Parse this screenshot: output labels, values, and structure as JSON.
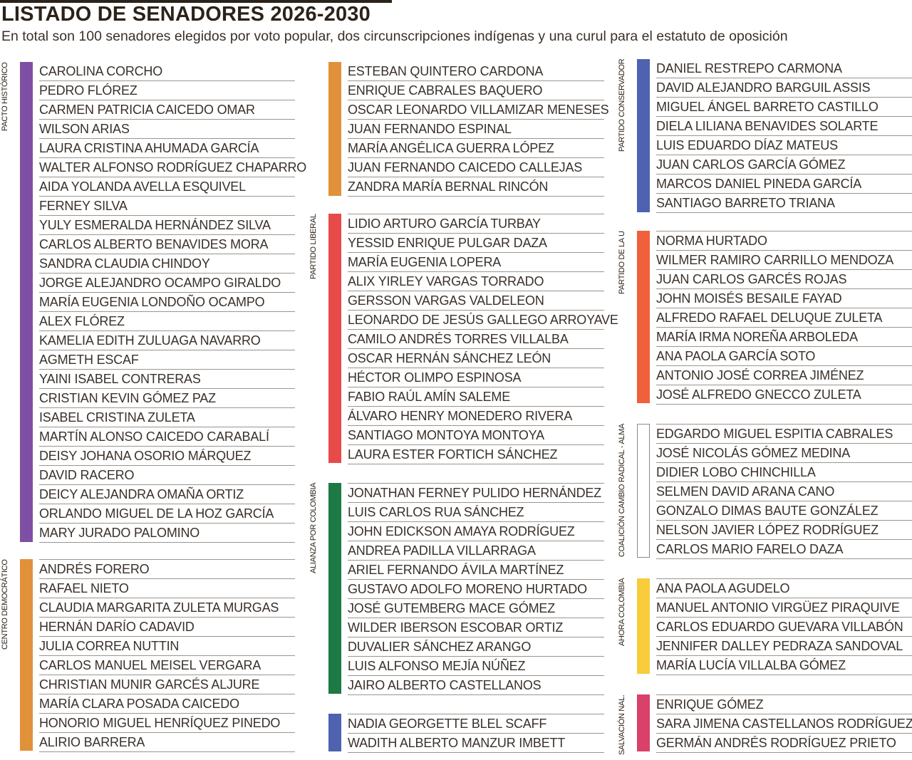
{
  "header": {
    "title": "LISTADO DE SENADORES  2026-2030",
    "subtitle": "En total son 100 senadores elegidos por voto popular, dos circunscripciones indígenas y una curul para el estatuto de oposición"
  },
  "parties": {
    "pacto_historico": {
      "label": "PACTO HISTÓRICO",
      "color": "#7f4fa3",
      "members": [
        "CAROLINA CORCHO",
        "PEDRO FLÓREZ",
        "CARMEN PATRICIA CAICEDO OMAR",
        "WILSON ARIAS",
        "LAURA CRISTINA AHUMADA GARCÍA",
        "WALTER ALFONSO RODRÍGUEZ CHAPARRO",
        "AIDA YOLANDA AVELLA ESQUIVEL",
        "FERNEY SILVA",
        "YULY ESMERALDA HERNÁNDEZ SILVA",
        "CARLOS ALBERTO BENAVIDES MORA",
        "SANDRA CLAUDIA CHINDOY",
        "JORGE ALEJANDRO OCAMPO GIRALDO",
        "MARÍA EUGENIA LONDOÑO OCAMPO",
        "ALEX FLÓREZ",
        "KAMELIA EDITH ZULUAGA NAVARRO",
        "AGMETH ESCAF",
        "YAINI ISABEL CONTRERAS",
        "CRISTIAN KEVIN GÓMEZ PAZ",
        "ISABEL CRISTINA ZULETA",
        "MARTÍN ALONSO CAICEDO CARABALÍ",
        "DEISY JOHANA OSORIO MÁRQUEZ",
        "DAVID RACERO",
        "DEICY ALEJANDRA OMAÑA ORTIZ",
        "ORLANDO MIGUEL DE LA HOZ GARCÍA",
        "MARY JURADO PALOMINO"
      ]
    },
    "centro_democratico": {
      "label": "CENTRO DEMOCRÁTICO",
      "color": "#e0913a",
      "members": [
        "ANDRÉS FORERO",
        "RAFAEL NIETO",
        "CLAUDIA MARGARITA ZULETA MURGAS",
        "HERNÁN DARÍO CADAVID",
        "JULIA CORREA NUTTIN",
        "CARLOS MANUEL MEISEL VERGARA",
        "CHRISTIAN MUNIR GARCÉS ALJURE",
        "MARÍA CLARA POSADA CAICEDO",
        "HONORIO MIGUEL HENRÍQUEZ PINEDO",
        "ALIRIO BARRERA"
      ]
    },
    "centro_democratico_cont": {
      "label": "",
      "color": "#e0913a",
      "members": [
        "ESTEBAN QUINTERO CARDONA",
        "ENRIQUE CABRALES BAQUERO",
        "OSCAR LEONARDO VILLAMIZAR MENESES",
        "JUAN FERNANDO ESPINAL",
        "MARÍA ANGÉLICA GUERRA LÓPEZ",
        "JUAN FERNANDO CAICEDO CALLEJAS",
        "ZANDRA MARÍA BERNAL RINCÓN"
      ]
    },
    "partido_liberal": {
      "label": "PARTIDO LIBERAL",
      "color": "#e84a4a",
      "members": [
        "LIDIO ARTURO GARCÍA TURBAY",
        "YESSID ENRIQUE PULGAR DAZA",
        "MARÍA EUGENIA LOPERA",
        "ALIX YIRLEY VARGAS TORRADO",
        "GERSSON VARGAS VALDELEON",
        "LEONARDO DE JESÚS GALLEGO ARROYAVE",
        "CAMILO ANDRÉS TORRES VILLALBA",
        "OSCAR HERNÁN SÁNCHEZ LEÓN",
        "HÉCTOR OLIMPO ESPINOSA",
        "FABIO RAÚL AMÍN SALEME",
        "ÁLVARO HENRY MONEDERO RIVERA",
        "SANTIAGO MONTOYA MONTOYA",
        "LAURA ESTER FORTICH SÁNCHEZ"
      ]
    },
    "alianza_por_colombia": {
      "label": "ALIANZA POR COLOMBIA",
      "color": "#1d7a45",
      "members": [
        "JONATHAN FERNEY PULIDO HERNÁNDEZ",
        "LUIS CARLOS RUA SÁNCHEZ",
        "JOHN EDICKSON AMAYA RODRÍGUEZ",
        "ANDREA PADILLA VILLARRAGA",
        "ARIEL FERNANDO ÁVILA MARTÍNEZ",
        "GUSTAVO ADOLFO MORENO HURTADO",
        "JOSÉ GUTEMBERG MACE GÓMEZ",
        "WILDER IBERSON ESCOBAR ORTIZ",
        "DUVALIER SÁNCHEZ ARANGO",
        "LUIS ALFONSO MEJÍA NÚÑEZ",
        "JAIRO ALBERTO CASTELLANOS"
      ]
    },
    "partido_conservador_cont": {
      "label": "",
      "color": "#4f62b0",
      "members": [
        "NADIA GEORGETTE BLEL SCAFF",
        "WADITH ALBERTO MANZUR IMBETT"
      ]
    },
    "partido_conservador": {
      "label": "PARTIDO CONSERVADOR",
      "color": "#4f62b0",
      "members": [
        "DANIEL RESTREPO CARMONA",
        "DAVID ALEJANDRO BARGUIL ASSIS",
        "MIGUEL ÁNGEL BARRETO CASTILLO",
        "DIELA LILIANA BENAVIDES SOLARTE",
        "LUIS EDUARDO DÍAZ MATEUS",
        "JUAN CARLOS GARCÍA GÓMEZ",
        "MARCOS DANIEL PINEDA GARCÍA",
        "SANTIAGO BARRETO TRIANA"
      ]
    },
    "partido_de_la_u": {
      "label": "PARTIDO DE LA U",
      "color": "#f0603a",
      "members": [
        "NORMA HURTADO",
        "WILMER RAMIRO CARRILLO MENDOZA",
        "JUAN CARLOS GARCÉS ROJAS",
        "JOHN MOISÉS BESAILE FAYAD",
        "ALFREDO RAFAEL DELUQUE ZULETA",
        "MARÍA IRMA NOREÑA ARBOLEDA",
        "ANA PAOLA GARCÍA SOTO",
        "ANTONIO JOSÉ CORREA JIMÉNEZ",
        "JOSÉ ALFREDO GNECCO ZULETA"
      ]
    },
    "coalicion_cambio_radical_alma": {
      "label": "COALICIÓN CAMBIO RADICAL - ALMA",
      "color": "#ffffff",
      "members": [
        "EDGARDO MIGUEL ESPITIA CABRALES",
        "JOSÉ NICOLÁS GÓMEZ MEDINA",
        "DIDIER LOBO CHINCHILLA",
        "SELMEN DAVID ARANA CANO",
        "GONZALO DIMAS BAUTE GONZÁLEZ",
        "NELSON JAVIER LÓPEZ RODRÍGUEZ",
        "CARLOS MARIO FARELO DAZA"
      ]
    },
    "ahora_colombia": {
      "label": "AHORA COLOMBIA",
      "color": "#f8cc3a",
      "members": [
        "ANA PAOLA AGUDELO",
        "MANUEL ANTONIO VIRGÜEZ PIRAQUIVE",
        "CARLOS EDUARDO GUEVARA VILLABÓN",
        "JENNIFER DALLEY PEDRAZA SANDOVAL",
        "MARÍA LUCÍA VILLALBA GÓMEZ"
      ]
    },
    "salvacion_nal": {
      "label": "SALVACIÓN NAL.",
      "color": "#d9406a",
      "members": [
        "ENRIQUE GÓMEZ",
        "SARA JIMENA CASTELLANOS RODRÍGUEZ",
        "GERMÁN ANDRÉS RODRÍGUEZ PRIETO"
      ]
    }
  }
}
